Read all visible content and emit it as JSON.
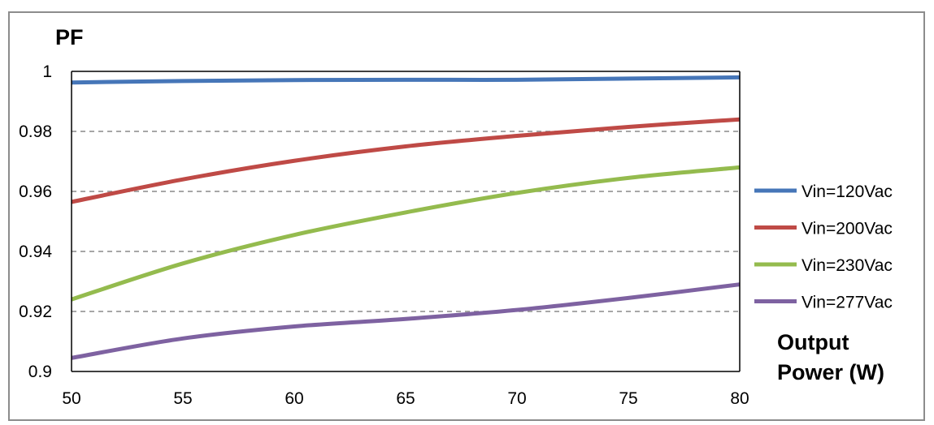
{
  "chart_data": {
    "type": "line",
    "ylabel": "PF",
    "xlabel_lines": [
      "Output",
      "Power (W)"
    ],
    "xlim": [
      50,
      80
    ],
    "ylim": [
      0.9,
      1.0
    ],
    "x_ticks": [
      50,
      55,
      60,
      65,
      70,
      75,
      80
    ],
    "x_tick_labels": [
      "50",
      "55",
      "60",
      "65",
      "70",
      "75",
      "80"
    ],
    "y_ticks": [
      0.9,
      0.92,
      0.94,
      0.96,
      0.98,
      1.0
    ],
    "y_tick_labels": [
      "0.9",
      "0.92",
      "0.94",
      "0.96",
      "0.98",
      "1"
    ],
    "grid": "horizontal-dashed",
    "legend_position": "right",
    "x": [
      50,
      55,
      60,
      65,
      70,
      75,
      80
    ],
    "series": [
      {
        "name": "Vin=120Vac",
        "color": "#4676b8",
        "values": [
          0.9963,
          0.9968,
          0.9971,
          0.9972,
          0.9972,
          0.9976,
          0.998
        ]
      },
      {
        "name": "Vin=200Vac",
        "color": "#bf4a46",
        "values": [
          0.9565,
          0.964,
          0.9702,
          0.975,
          0.9785,
          0.9815,
          0.984
        ]
      },
      {
        "name": "Vin=230Vac",
        "color": "#94bb4e",
        "values": [
          0.924,
          0.936,
          0.9455,
          0.953,
          0.9595,
          0.9645,
          0.968
        ]
      },
      {
        "name": "Vin=277Vac",
        "color": "#7e62a1",
        "values": [
          0.9045,
          0.911,
          0.915,
          0.9175,
          0.9205,
          0.9245,
          0.929
        ]
      }
    ]
  }
}
